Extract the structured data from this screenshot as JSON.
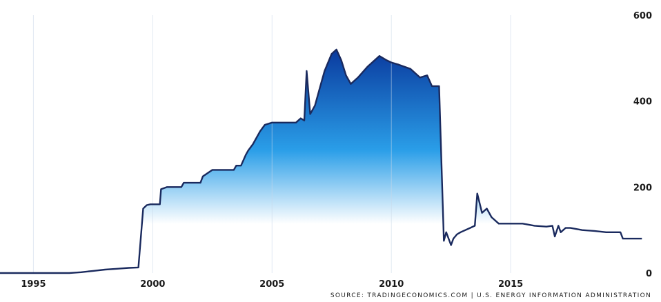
{
  "chart_data": {
    "type": "area",
    "title": "",
    "xlabel": "",
    "ylabel": "",
    "xlim": [
      1993.6,
      2021.3
    ],
    "ylim": [
      0,
      600
    ],
    "x_ticks": [
      {
        "value": 1995,
        "label": "1995"
      },
      {
        "value": 2000,
        "label": "2000"
      },
      {
        "value": 2005,
        "label": "2005"
      },
      {
        "value": 2010,
        "label": "2010"
      },
      {
        "value": 2015,
        "label": "2015"
      }
    ],
    "y_ticks": [
      {
        "value": 0,
        "label": "0"
      },
      {
        "value": 200,
        "label": "200"
      },
      {
        "value": 400,
        "label": "400"
      },
      {
        "value": 600,
        "label": "600"
      }
    ],
    "grid": true,
    "legend": "none",
    "source": "SOURCE: TRADINGECONOMICS.COM | U.S. ENERGY INFORMATION ADMINISTRATION",
    "colors": {
      "line": "#1a2a5e",
      "fill_top": "#0a3a9e",
      "fill_mid": "#2a9ee8",
      "fill_bottom": "#ffffff",
      "grid": "#c9d7e8",
      "text": "#1a1a1a"
    },
    "series": [
      {
        "x": [
          1993.6,
          1996.5,
          1997.0,
          1997.5,
          1998.0,
          1998.5,
          1999.0,
          1999.4,
          1999.6,
          1999.75,
          1999.9,
          2000.3,
          2000.35,
          2000.6,
          2001.2,
          2001.3,
          2002.0,
          2002.1,
          2002.5,
          2003.0,
          2003.4,
          2003.5,
          2003.7,
          2003.9,
          2004.0,
          2004.2,
          2004.5,
          2004.7,
          2005.0,
          2005.5,
          2006.0,
          2006.2,
          2006.35,
          2006.45,
          2006.6,
          2006.8,
          2007.0,
          2007.2,
          2007.5,
          2007.7,
          2007.9,
          2008.1,
          2008.3,
          2008.6,
          2009.0,
          2009.5,
          2009.8,
          2010.0,
          2010.3,
          2010.8,
          2011.2,
          2011.5,
          2011.7,
          2012.0,
          2012.2,
          2012.3,
          2012.5,
          2012.6,
          2012.75,
          2012.9,
          2013.3,
          2013.5,
          2013.6,
          2013.8,
          2014.0,
          2014.2,
          2014.5,
          2015.0,
          2015.5,
          2016.0,
          2016.5,
          2016.75,
          2016.85,
          2017.0,
          2017.1,
          2017.3,
          2017.5,
          2018.0,
          2018.5,
          2019.0,
          2019.6,
          2019.7,
          2020.5
        ],
        "values": [
          0,
          0,
          2,
          5,
          8,
          10,
          12,
          13,
          150,
          158,
          160,
          160,
          195,
          200,
          200,
          210,
          210,
          225,
          240,
          240,
          240,
          250,
          250,
          275,
          285,
          300,
          330,
          345,
          350,
          350,
          350,
          360,
          355,
          470,
          370,
          390,
          430,
          470,
          510,
          520,
          495,
          460,
          440,
          455,
          480,
          505,
          495,
          490,
          485,
          475,
          455,
          460,
          435,
          435,
          75,
          95,
          65,
          80,
          90,
          95,
          105,
          110,
          185,
          140,
          150,
          130,
          115,
          115,
          115,
          110,
          108,
          110,
          85,
          110,
          95,
          105,
          105,
          100,
          98,
          95,
          95,
          80,
          80
        ]
      }
    ]
  }
}
